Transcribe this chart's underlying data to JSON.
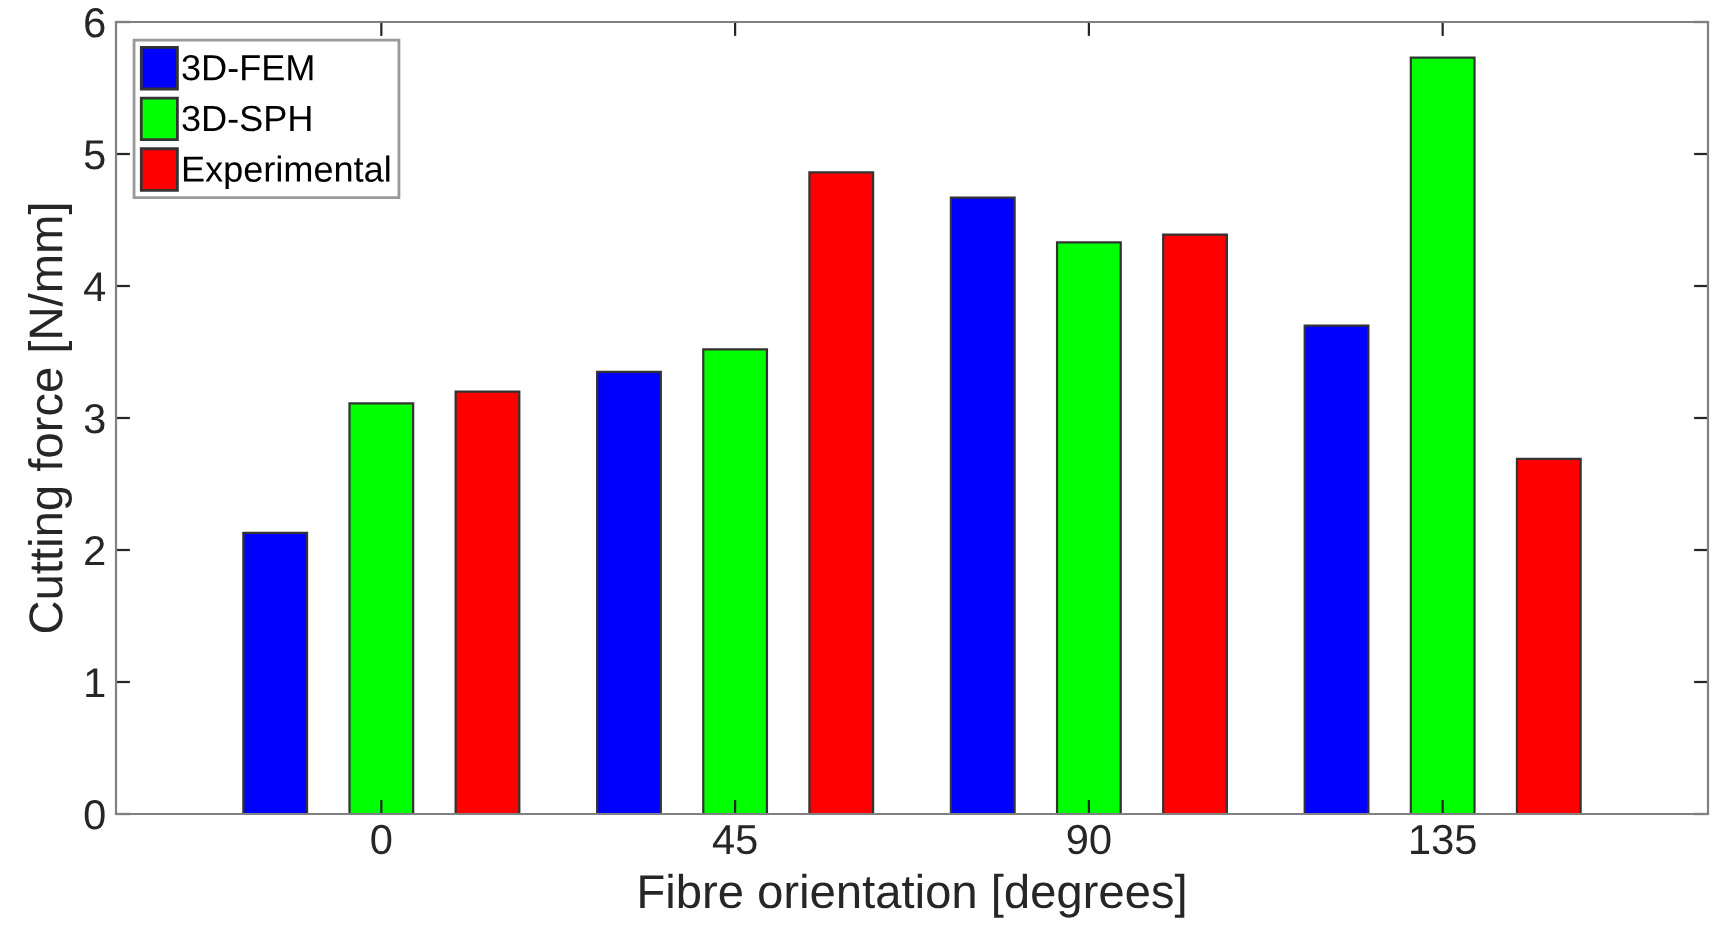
{
  "chart_data": {
    "type": "bar",
    "xlabel": "Fibre orientation [degrees]",
    "ylabel": "Cutting force [N/mm]",
    "categories": [
      "0",
      "45",
      "90",
      "135"
    ],
    "series": [
      {
        "name": "3D-FEM",
        "color": "#0000ff",
        "values": [
          2.13,
          3.35,
          4.67,
          3.7
        ]
      },
      {
        "name": "3D-SPH",
        "color": "#00ff00",
        "values": [
          3.11,
          3.52,
          4.33,
          5.73
        ]
      },
      {
        "name": "Experimental",
        "color": "#ff0000",
        "values": [
          3.2,
          4.86,
          4.39,
          2.69
        ]
      }
    ],
    "ylim": [
      0,
      6
    ],
    "yticks": [
      0,
      1,
      2,
      3,
      4,
      5,
      6
    ],
    "grid": false,
    "legend": "top left"
  }
}
